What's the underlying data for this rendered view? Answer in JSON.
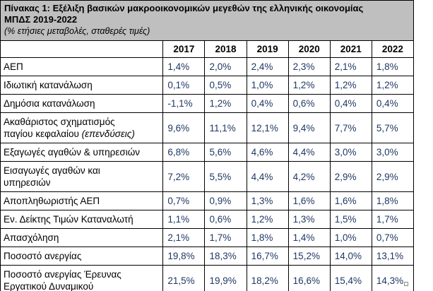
{
  "header": {
    "title_line1": "Πίνακας 1: Εξέλιξη βασικών μακροοικονομικών μεγεθών της ελληνικής οικονομίας",
    "title_line2": "ΜΠΔΣ 2019-2022",
    "subtitle": "(% ετήσιες μεταβολές, σταθερές τιμές)"
  },
  "table": {
    "columns": [
      "2017",
      "2018",
      "2019",
      "2020",
      "2021",
      "2022"
    ],
    "rows": [
      {
        "label": "ΑΕΠ",
        "values": [
          "1,4%",
          "2,0%",
          "2,4%",
          "2,3%",
          "2,1%",
          "1,8%"
        ]
      },
      {
        "label": "Ιδιωτική κατανάλωση",
        "values": [
          "0,1%",
          "0,5%",
          "1,0%",
          "1,2%",
          "1,2%",
          "1,2%"
        ]
      },
      {
        "label": "Δημόσια κατανάλωση",
        "values": [
          "-1,1%",
          "1,2%",
          "0,4%",
          "0,6%",
          "0,4%",
          "0,4%"
        ]
      },
      {
        "label": "Ακαθάριστος σχηματισμός παγίου κεφαλαίου",
        "label_italic": "(επενδύσεις)",
        "values": [
          "9,6%",
          "11,1%",
          "12,1%",
          "9,4%",
          "7,7%",
          "5,7%"
        ]
      },
      {
        "label": "Εξαγωγές αγαθών & υπηρεσιών",
        "values": [
          "6,8%",
          "5,6%",
          "4,6%",
          "4,4%",
          "3,0%",
          "3,0%"
        ]
      },
      {
        "label": "Εισαγωγές αγαθών και υπηρεσιών",
        "values": [
          "7,2%",
          "5,5%",
          "4,4%",
          "4,2%",
          "2,9%",
          "2,9%"
        ]
      },
      {
        "label": "Αποπληθωριστής ΑΕΠ",
        "values": [
          "0,7%",
          "0,9%",
          "1,3%",
          "1,6%",
          "1,6%",
          "1,8%"
        ]
      },
      {
        "label": "Εν. Δείκτης Τιμών Καταναλωτή",
        "values": [
          "1,1%",
          "0,6%",
          "1,2%",
          "1,3%",
          "1,5%",
          "1,7%"
        ]
      },
      {
        "label": "Απασχόληση",
        "values": [
          "2,1%",
          "1,7%",
          "1,8%",
          "1,4%",
          "1,0%",
          "0,7%"
        ]
      },
      {
        "label": "Ποσοστό ανεργίας",
        "values": [
          "19,8%",
          "18,3%",
          "16,7%",
          "15,2%",
          "14,0%",
          "13,1%"
        ]
      },
      {
        "label": "Ποσοστό ανεργίας Έρευνας Εργατικού Δυναμικού",
        "values": [
          "21,5%",
          "19,9%",
          "18,2%",
          "16,6%",
          "15,4%",
          "14,3%"
        ]
      }
    ]
  },
  "colors": {
    "band_bg": "#bfbfbf",
    "border": "#000000",
    "value_text": "#1f3864",
    "label_text": "#000000"
  }
}
